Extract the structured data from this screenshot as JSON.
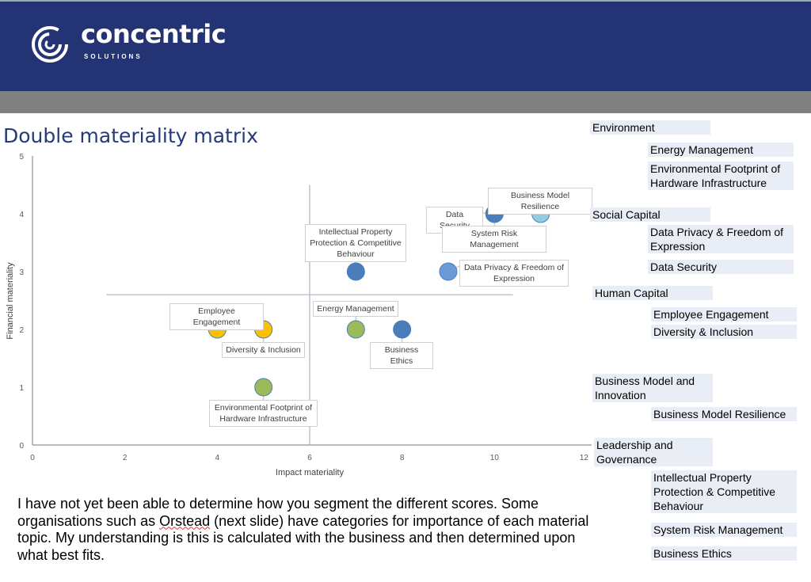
{
  "brand": {
    "name": "concentric",
    "tagline": "SOLUTIONS",
    "header_color": "#233373"
  },
  "title": "Double materiality matrix",
  "chart_data": {
    "type": "scatter",
    "xlabel": "Impact materiality",
    "ylabel": "Financial materiality",
    "xlim": [
      0,
      12
    ],
    "ylim": [
      0,
      5
    ],
    "xticks": [
      0,
      2,
      4,
      6,
      8,
      10,
      12
    ],
    "yticks": [
      0,
      1,
      2,
      3,
      4,
      5
    ],
    "grid": false,
    "quadrant_lines": {
      "x": 6,
      "y": 2.6
    },
    "points": [
      {
        "label": "Business Model Resilience",
        "x": 11,
        "y": 4,
        "color": "#93CDDD"
      },
      {
        "label": "Data Security",
        "x": 10,
        "y": 4,
        "color": "#4A7EBB"
      },
      {
        "label": "System Risk Management",
        "x": 10,
        "y": 4,
        "color": "#4A7EBB"
      },
      {
        "label": "Intellectual Property Protection & Competitive Behaviour",
        "x": 7,
        "y": 3,
        "color": "#4A7EBB"
      },
      {
        "label": "Data Privacy & Freedom of Expression",
        "x": 9,
        "y": 3,
        "color": "#6A9BD8"
      },
      {
        "label": "Employee Engagement",
        "x": 4,
        "y": 2,
        "color": "#FFC000"
      },
      {
        "label": "Diversity & Inclusion",
        "x": 5,
        "y": 2,
        "color": "#FFC000"
      },
      {
        "label": "Energy Management",
        "x": 7,
        "y": 2,
        "color": "#9BBB59"
      },
      {
        "label": "Business Ethics",
        "x": 8,
        "y": 2,
        "color": "#4A7EBB"
      },
      {
        "label": "Environmental Footprint of Hardware Infrastructure",
        "x": 5,
        "y": 1,
        "color": "#9BBB59"
      }
    ]
  },
  "legend_panel": [
    {
      "kind": "category",
      "text": "Environment"
    },
    {
      "kind": "item",
      "text": "Energy Management"
    },
    {
      "kind": "item",
      "text": "Environmental Footprint of Hardware Infrastructure"
    },
    {
      "kind": "category",
      "text": "Social Capital"
    },
    {
      "kind": "item",
      "text": "Data Privacy & Freedom of Expression"
    },
    {
      "kind": "item",
      "text": "Data Security"
    },
    {
      "kind": "category",
      "text": "Human Capital"
    },
    {
      "kind": "item",
      "text": "Employee Engagement"
    },
    {
      "kind": "item",
      "text": "Diversity & Inclusion"
    },
    {
      "kind": "category",
      "text": "Business Model and Innovation"
    },
    {
      "kind": "item",
      "text": "Business Model Resilience"
    },
    {
      "kind": "category",
      "text": "Leadership and Governance"
    },
    {
      "kind": "item",
      "text": "Intellectual Property Protection & Competitive Behaviour"
    },
    {
      "kind": "item",
      "text": "System Risk Management"
    },
    {
      "kind": "item",
      "text": "Business Ethics"
    }
  ],
  "note": {
    "before": "I have not yet been able to determine how you segment the different scores. Some organisations such as ",
    "link": "Orstead",
    "after": " (next slide) have categories for importance of each material topic. My understanding is this is calculated with the business and then determined upon what best fits."
  }
}
